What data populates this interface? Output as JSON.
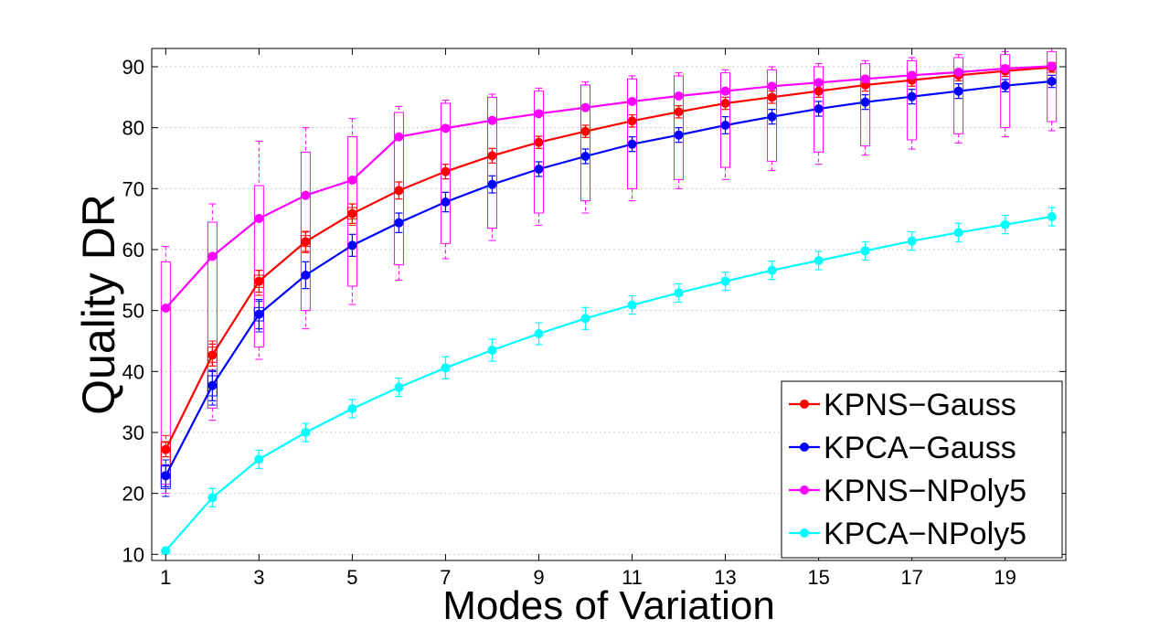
{
  "chart_data": {
    "type": "line",
    "xlabel": "Modes of Variation",
    "ylabel": "Quality DR",
    "xlim": [
      0.7,
      20.3
    ],
    "ylim": [
      9,
      93
    ],
    "x_ticks": [
      "1",
      "3",
      "5",
      "7",
      "9",
      "11",
      "13",
      "15",
      "17",
      "19"
    ],
    "y_ticks": [
      "10",
      "20",
      "30",
      "40",
      "50",
      "60",
      "70",
      "80",
      "90"
    ],
    "grid": "horizontal dotted",
    "legend_position": "bottom-right",
    "x": [
      1,
      2,
      3,
      4,
      5,
      6,
      7,
      8,
      9,
      10,
      11,
      12,
      13,
      14,
      15,
      16,
      17,
      18,
      19,
      20
    ],
    "series": [
      {
        "name": "KPNS−Gauss",
        "color": "#ff0000",
        "values": [
          27.2,
          42.7,
          54.8,
          61.3,
          65.9,
          69.7,
          72.8,
          75.4,
          77.6,
          79.4,
          81.1,
          82.6,
          84.0,
          85.0,
          86.0,
          87.0,
          87.8,
          88.6,
          89.3,
          89.9
        ],
        "err": [
          1.2,
          1.8,
          1.8,
          1.6,
          1.6,
          1.4,
          1.2,
          1.2,
          1.0,
          1.0,
          1.0,
          1.0,
          1.0,
          1.0,
          1.0,
          1.0,
          1.0,
          0.9,
          0.9,
          0.8
        ]
      },
      {
        "name": "KPCA−Gauss",
        "color": "#0000ff",
        "values": [
          22.9,
          37.7,
          49.4,
          55.8,
          60.7,
          64.4,
          67.8,
          70.7,
          73.2,
          75.3,
          77.3,
          78.8,
          80.4,
          81.8,
          83.1,
          84.2,
          85.1,
          86.0,
          86.9,
          87.6
        ],
        "err": [
          1.8,
          2.5,
          2.4,
          2.2,
          1.8,
          1.6,
          1.6,
          1.4,
          1.2,
          1.2,
          1.2,
          1.2,
          1.4,
          1.2,
          1.2,
          1.2,
          1.2,
          1.2,
          1.0,
          1.0
        ]
      },
      {
        "name": "KPNS−NPoly5",
        "color": "#ff00ff",
        "values": [
          50.4,
          58.9,
          65.1,
          68.9,
          71.4,
          78.5,
          79.9,
          81.2,
          82.3,
          83.3,
          84.3,
          85.2,
          86.0,
          86.8,
          87.4,
          88.0,
          88.6,
          89.1,
          89.7,
          90.1
        ]
      },
      {
        "name": "KPCA−NPoly5",
        "color": "#00ffff",
        "values": [
          10.6,
          19.3,
          25.6,
          30.0,
          33.9,
          37.4,
          40.6,
          43.5,
          46.2,
          48.7,
          50.9,
          52.9,
          54.8,
          56.6,
          58.2,
          59.8,
          61.4,
          62.8,
          64.1,
          65.4
        ],
        "err": [
          0.5,
          1.5,
          1.5,
          1.5,
          1.5,
          1.5,
          1.8,
          1.8,
          1.8,
          1.8,
          1.5,
          1.5,
          1.5,
          1.5,
          1.5,
          1.5,
          1.5,
          1.5,
          1.5,
          1.5
        ]
      }
    ],
    "boxplots": [
      {
        "series": "KPNS−NPoly5",
        "color": "#ff00ff",
        "x": [
          1,
          2,
          3,
          4,
          5,
          6,
          7,
          8,
          9,
          10,
          11,
          12,
          13,
          14,
          15,
          16,
          17,
          18,
          19,
          20
        ],
        "q1": [
          21.5,
          34.0,
          44.0,
          50.0,
          54.0,
          57.5,
          61.0,
          63.5,
          66.0,
          68.0,
          70.0,
          71.5,
          73.5,
          74.5,
          76.0,
          77.0,
          78.0,
          79.0,
          80.0,
          81.0
        ],
        "q3": [
          58.0,
          64.5,
          70.5,
          76.0,
          78.5,
          82.5,
          84.0,
          85.0,
          86.0,
          87.0,
          88.0,
          88.5,
          89.0,
          89.5,
          90.0,
          90.5,
          91.0,
          91.5,
          92.0,
          92.5
        ],
        "low": [
          20.0,
          32.0,
          42.0,
          47.0,
          51.0,
          55.0,
          58.5,
          61.5,
          64.0,
          66.0,
          68.0,
          70.0,
          71.5,
          73.0,
          74.0,
          75.5,
          76.5,
          77.5,
          78.5,
          79.5
        ],
        "high": [
          60.5,
          67.5,
          77.8,
          80.0,
          81.5,
          83.5,
          84.5,
          85.5,
          86.5,
          87.5,
          88.5,
          89.0,
          89.5,
          90.0,
          90.5,
          91.0,
          91.5,
          92.0,
          92.5,
          93.0
        ]
      },
      {
        "series": "KPNS−Gauss",
        "color": "#ff0000",
        "x": [
          1,
          2,
          3,
          4,
          5
        ],
        "q1": [
          24.5,
          41.5,
          53.8,
          60.5,
          65.0
        ],
        "q3": [
          28.5,
          44.0,
          55.8,
          62.3,
          66.9
        ],
        "low": [
          23.5,
          40.0,
          52.5,
          59.5,
          64.0
        ],
        "high": [
          29.5,
          45.0,
          56.6,
          63.0,
          67.5
        ]
      },
      {
        "series": "KPCA−Gauss",
        "color": "#0000ff",
        "x": [
          1,
          2,
          3
        ],
        "q1": [
          20.8,
          36.0,
          48.3
        ],
        "q3": [
          24.5,
          39.3,
          50.5
        ],
        "low": [
          19.5,
          34.5,
          46.5
        ],
        "high": [
          25.5,
          40.0,
          51.5
        ]
      }
    ]
  }
}
